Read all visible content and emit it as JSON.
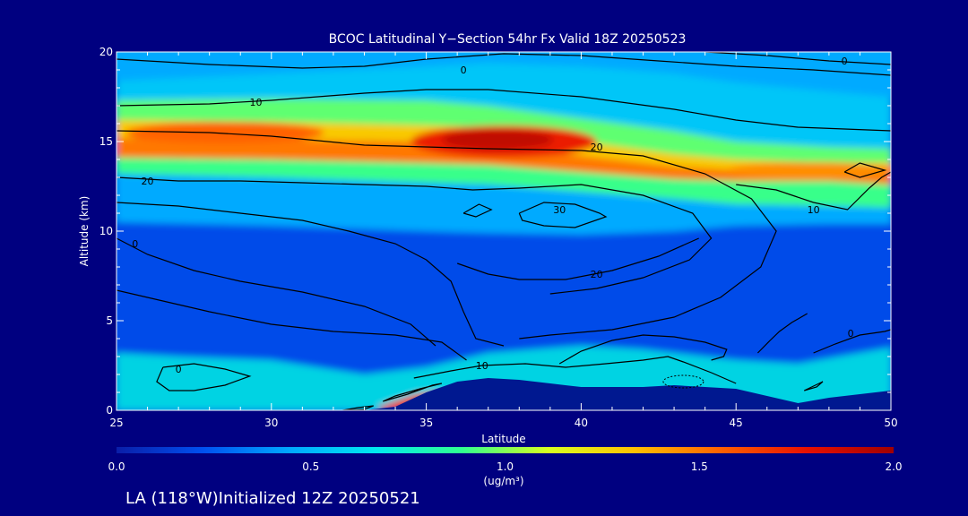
{
  "chart_data": {
    "type": "heatmap",
    "title": "BCOC Latitudinal Y−Section 54hr  Fx Valid 18Z 20250523",
    "xlabel": "Latitude",
    "ylabel": "Altitude (km)",
    "xlim": [
      25,
      50
    ],
    "ylim": [
      0,
      20
    ],
    "x_ticks": [
      25,
      30,
      35,
      40,
      45,
      50
    ],
    "y_ticks": [
      0,
      5,
      10,
      15,
      20
    ],
    "colorbar": {
      "min": 0.0,
      "max": 2.0,
      "ticks": [
        "0.0",
        "0.5",
        "1.0",
        "1.5",
        "2.0"
      ],
      "unit": "(ug/m³)",
      "colors": [
        "#0a1ea8",
        "#0050f0",
        "#00a8ff",
        "#00e8f0",
        "#30ff90",
        "#d8ff20",
        "#ffc000",
        "#ff6000",
        "#e81000",
        "#a00000"
      ]
    },
    "bands": [
      {
        "x": [
          25,
          30,
          35,
          37,
          40,
          43,
          45,
          48,
          50
        ],
        "y": [
          18.4,
          18.8,
          19.2,
          19.4,
          19.2,
          18.8,
          18.3,
          17.8,
          17.5
        ],
        "level": 0.55
      },
      {
        "x": [
          25,
          30,
          35,
          37,
          40,
          43,
          45,
          48,
          50
        ],
        "y": [
          17.3,
          17.4,
          17.3,
          17.0,
          16.3,
          15.6,
          15.0,
          14.7,
          14.6
        ],
        "level": 0.95
      },
      {
        "x": [
          25,
          30,
          35,
          37,
          40,
          43,
          45,
          48,
          50
        ],
        "y": [
          16.2,
          16.1,
          15.9,
          15.8,
          15.0,
          14.3,
          14.0,
          13.8,
          13.8
        ],
        "level": 1.3
      },
      {
        "x": [
          25,
          30,
          35,
          37,
          40,
          43,
          45,
          48,
          50
        ],
        "y": [
          15.2,
          15.1,
          15.0,
          14.9,
          14.2,
          13.6,
          13.4,
          13.4,
          13.3
        ],
        "level": 1.5
      },
      {
        "x": [
          25,
          30,
          35,
          37,
          40,
          43,
          45,
          48,
          50
        ],
        "y": [
          14.1,
          14.0,
          13.8,
          13.7,
          13.3,
          12.9,
          12.8,
          12.8,
          12.6
        ],
        "level": 0.9
      },
      {
        "x": [
          25,
          30,
          35,
          37,
          40,
          43,
          45,
          48,
          50
        ],
        "y": [
          13.2,
          13.0,
          12.7,
          12.6,
          12.2,
          11.8,
          11.5,
          11.4,
          11.3
        ],
        "level": 0.45
      },
      {
        "x": [
          25,
          30,
          35,
          37,
          40,
          43,
          45,
          48,
          50
        ],
        "y": [
          10.5,
          10.3,
          10.0,
          9.9,
          9.8,
          10.0,
          10.3,
          10.4,
          10.4
        ],
        "level": 0.35
      }
    ],
    "peak_blobs": [
      {
        "cx": 37.5,
        "cy": 15.0,
        "rx": 3.0,
        "ry": 0.9,
        "level": 1.75
      },
      {
        "cx": 37.3,
        "cy": 15.1,
        "rx": 1.8,
        "ry": 0.55,
        "level": 1.9
      },
      {
        "cx": 28.5,
        "cy": 15.5,
        "rx": 3.2,
        "ry": 0.6,
        "level": 1.55
      },
      {
        "cx": 47.5,
        "cy": 13.4,
        "rx": 2.8,
        "ry": 0.45,
        "level": 1.45
      }
    ],
    "surface_plume": {
      "x": [
        33.5,
        34.0,
        34.7,
        35.3,
        35.7
      ],
      "y": [
        0.2,
        0.5,
        0.9,
        1.0,
        0.9
      ],
      "level": 1.7
    },
    "low_level_haze": {
      "x": [
        25,
        27,
        30,
        33,
        35,
        37,
        40,
        42,
        45,
        47,
        49,
        50
      ],
      "y": [
        3.2,
        3.0,
        2.8,
        2.0,
        2.4,
        3.2,
        3.6,
        3.4,
        2.8,
        2.6,
        3.2,
        3.5
      ],
      "level": 0.7
    },
    "terrain": {
      "x": [
        25,
        33,
        34,
        35,
        36,
        37,
        38,
        39,
        40,
        41,
        42,
        43,
        44,
        45,
        46,
        47,
        48,
        49,
        50
      ],
      "y": [
        0,
        0,
        0.2,
        1.0,
        1.6,
        1.8,
        1.7,
        1.5,
        1.3,
        1.3,
        1.3,
        1.4,
        1.3,
        1.2,
        0.8,
        0.4,
        0.7,
        0.9,
        1.1
      ]
    },
    "contours": [
      {
        "label": "0",
        "label_at": [
          36.2,
          19.0
        ],
        "x": [
          25,
          28,
          31,
          33,
          35,
          37.5,
          40,
          42.5,
          45,
          47.5,
          50
        ],
        "y": [
          19.6,
          19.3,
          19.1,
          19.2,
          19.6,
          19.9,
          19.8,
          19.5,
          19.2,
          19.0,
          18.7
        ]
      },
      {
        "label": "0",
        "label_at": [
          48.5,
          19.5
        ],
        "x": [
          44,
          46,
          48,
          50
        ],
        "y": [
          20.0,
          19.8,
          19.5,
          19.3
        ]
      },
      {
        "label": "10",
        "label_at": [
          29.5,
          17.2
        ],
        "x": [
          25,
          28,
          30,
          33,
          35,
          37,
          40,
          43,
          45,
          47,
          50
        ],
        "y": [
          17.0,
          17.1,
          17.3,
          17.7,
          17.9,
          17.9,
          17.5,
          16.8,
          16.2,
          15.8,
          15.6
        ]
      },
      {
        "label": "20",
        "label_at": [
          40.5,
          14.7
        ],
        "x": [
          25,
          28,
          30,
          33,
          35,
          37,
          40,
          42,
          44,
          45.5,
          46.3,
          45.8,
          44.5,
          43,
          41,
          39,
          38
        ],
        "y": [
          15.6,
          15.5,
          15.3,
          14.8,
          14.7,
          14.6,
          14.5,
          14.2,
          13.2,
          11.8,
          10.0,
          8.0,
          6.3,
          5.2,
          4.5,
          4.2,
          4.0
        ]
      },
      {
        "label": "20",
        "label_at": [
          26.0,
          12.8
        ],
        "x": [
          25,
          27,
          29,
          31,
          33,
          35,
          36.5,
          38,
          40,
          42,
          43.6,
          44.2,
          43.5,
          42,
          40.5,
          39
        ],
        "y": [
          13.0,
          12.8,
          12.8,
          12.7,
          12.6,
          12.5,
          12.3,
          12.4,
          12.6,
          12.0,
          11.0,
          9.6,
          8.4,
          7.4,
          6.8,
          6.5
        ]
      },
      {
        "label": "20",
        "label_at": [
          40.5,
          7.6
        ],
        "x": [
          36,
          37,
          38,
          39.5,
          41,
          42.5,
          43.8
        ],
        "y": [
          8.2,
          7.6,
          7.3,
          7.3,
          7.8,
          8.6,
          9.6
        ]
      },
      {
        "label": "30",
        "label_at": [
          39.3,
          11.2
        ],
        "x": [
          38.0,
          38.8,
          39.8,
          40.6,
          40.8,
          39.8,
          38.8,
          38.1,
          38.0
        ],
        "y": [
          11.0,
          11.6,
          11.5,
          11.0,
          10.8,
          10.2,
          10.3,
          10.6,
          11.0
        ]
      },
      {
        "label": "",
        "label_at": [
          36.5,
          11.3
        ],
        "x": [
          36.2,
          36.7,
          37.1,
          36.6,
          36.2
        ],
        "y": [
          11.0,
          11.5,
          11.2,
          10.8,
          11.0
        ]
      },
      {
        "label": "10",
        "label_at": [
          47.5,
          11.2
        ],
        "x": [
          45.0,
          46.3,
          47.5,
          48.6,
          49.3,
          49.7,
          50
        ],
        "y": [
          12.6,
          12.3,
          11.6,
          11.2,
          12.4,
          13.0,
          13.3
        ]
      },
      {
        "label": "",
        "label_at": [
          48.9,
          13.5
        ],
        "x": [
          48.5,
          49.0,
          49.8,
          49.0,
          48.5
        ],
        "y": [
          13.3,
          13.8,
          13.4,
          13.0,
          13.3
        ]
      },
      {
        "label": "0",
        "label_at": [
          25.6,
          9.3
        ],
        "x": [
          25,
          26,
          27.5,
          29,
          31,
          33,
          34.5,
          35.3
        ],
        "y": [
          9.6,
          8.7,
          7.8,
          7.2,
          6.6,
          5.8,
          4.8,
          3.6
        ]
      },
      {
        "label": "",
        "label_at": [
          28,
          11
        ],
        "x": [
          25,
          27,
          29,
          31,
          32.5,
          34,
          35,
          35.8,
          36.2,
          36.6,
          37.5
        ],
        "y": [
          11.6,
          11.4,
          11.0,
          10.6,
          10.0,
          9.3,
          8.4,
          7.2,
          5.5,
          4.0,
          3.6
        ]
      },
      {
        "label": "",
        "label_at": [
          28,
          6
        ],
        "x": [
          25,
          26.5,
          28,
          30,
          32,
          34,
          35.5,
          36.3
        ],
        "y": [
          6.7,
          6.1,
          5.5,
          4.8,
          4.4,
          4.2,
          3.8,
          2.8
        ]
      },
      {
        "label": "0",
        "label_at": [
          27.0,
          2.3
        ],
        "x": [
          26.5,
          27.5,
          28.5,
          29.3,
          28.5,
          27.5,
          26.7,
          26.3,
          26.5
        ],
        "y": [
          2.4,
          2.6,
          2.3,
          1.9,
          1.4,
          1.1,
          1.1,
          1.6,
          2.4
        ]
      },
      {
        "label": "10",
        "label_at": [
          36.8,
          2.5
        ],
        "x": [
          34.6,
          35.8,
          36.8,
          38.2,
          39.5,
          40.8,
          42.0,
          42.8,
          43.3,
          44.2,
          45.0
        ],
        "y": [
          1.8,
          2.2,
          2.5,
          2.6,
          2.4,
          2.6,
          2.8,
          3.0,
          2.7,
          2.1,
          1.5
        ]
      },
      {
        "label": "",
        "label_at": [
          41.5,
          4.0
        ],
        "x": [
          39.3,
          40.0,
          41.0,
          42.0,
          43.0,
          44.0,
          44.7,
          44.6,
          44.2
        ],
        "y": [
          2.6,
          3.3,
          3.9,
          4.2,
          4.1,
          3.8,
          3.4,
          3.0,
          2.8
        ]
      },
      {
        "label": "0",
        "label_at": [
          48.7,
          4.3
        ],
        "x": [
          47.5,
          48.2,
          49.0,
          49.8,
          50
        ],
        "y": [
          3.2,
          3.7,
          4.2,
          4.4,
          4.5
        ]
      },
      {
        "label": "",
        "label_at": [
          46.5,
          3.7
        ],
        "x": [
          45.7,
          46.1,
          46.4,
          46.8,
          47.3
        ],
        "y": [
          3.2,
          3.9,
          4.4,
          4.9,
          5.4
        ]
      },
      {
        "label": "",
        "label_at": [
          47.5,
          1.3
        ],
        "x": [
          47.2,
          47.8,
          47.6,
          47.2
        ],
        "y": [
          1.1,
          1.6,
          1.3,
          1.1
        ]
      },
      {
        "label": "",
        "label_at": [
          33.7,
          1.0
        ],
        "x": [
          33.6,
          34.4,
          35.2,
          35.5,
          34.8,
          34.0,
          33.6
        ],
        "y": [
          0.5,
          0.9,
          1.4,
          1.5,
          1.2,
          0.8,
          0.5
        ]
      },
      {
        "label": "",
        "label_at": [
          32.8,
          0.1
        ],
        "x": [
          32.3,
          32.8,
          33.3,
          33.0,
          32.3
        ],
        "y": [
          0.0,
          0.15,
          0.25,
          0.05,
          0.0
        ]
      }
    ],
    "dotted_contour": {
      "cx": 43.3,
      "cy": 1.6,
      "rx": 0.65,
      "ry": 0.35
    },
    "footer": "LA (118°W)Initialized 12Z 20250521"
  }
}
